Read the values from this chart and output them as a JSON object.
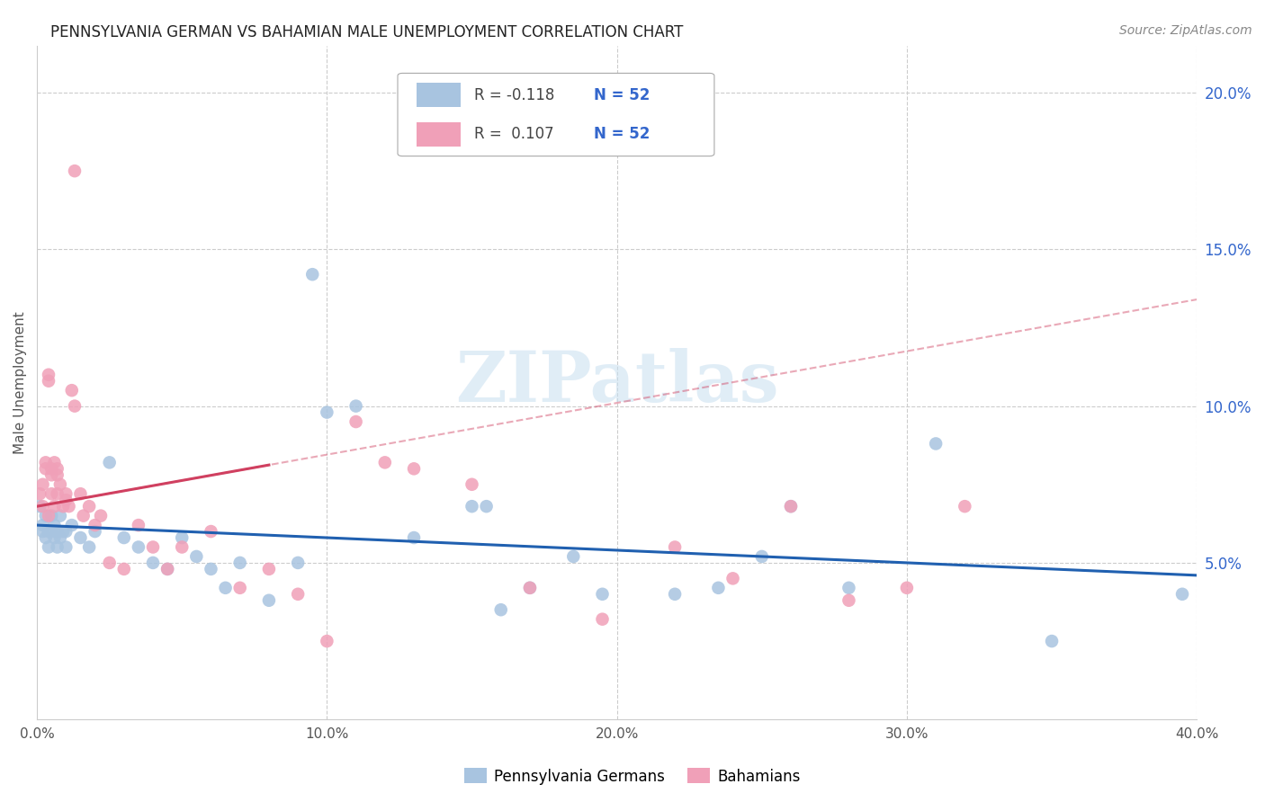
{
  "title": "PENNSYLVANIA GERMAN VS BAHAMIAN MALE UNEMPLOYMENT CORRELATION CHART",
  "source": "Source: ZipAtlas.com",
  "ylabel": "Male Unemployment",
  "watermark_text": "ZIPatlas",
  "pg_color": "#a8c4e0",
  "bah_color": "#f0a0b8",
  "pg_line_color": "#2060b0",
  "bah_line_color": "#d04060",
  "R_pg": -0.118,
  "N_pg": 52,
  "R_bah": 0.107,
  "N_bah": 52,
  "pg_points": [
    [
      0.001,
      0.068
    ],
    [
      0.002,
      0.062
    ],
    [
      0.002,
      0.06
    ],
    [
      0.003,
      0.058
    ],
    [
      0.003,
      0.065
    ],
    [
      0.004,
      0.06
    ],
    [
      0.004,
      0.055
    ],
    [
      0.005,
      0.06
    ],
    [
      0.005,
      0.065
    ],
    [
      0.006,
      0.058
    ],
    [
      0.006,
      0.062
    ],
    [
      0.007,
      0.055
    ],
    [
      0.007,
      0.06
    ],
    [
      0.008,
      0.058
    ],
    [
      0.008,
      0.065
    ],
    [
      0.009,
      0.06
    ],
    [
      0.01,
      0.055
    ],
    [
      0.01,
      0.06
    ],
    [
      0.012,
      0.062
    ],
    [
      0.015,
      0.058
    ],
    [
      0.018,
      0.055
    ],
    [
      0.02,
      0.06
    ],
    [
      0.025,
      0.082
    ],
    [
      0.03,
      0.058
    ],
    [
      0.035,
      0.055
    ],
    [
      0.04,
      0.05
    ],
    [
      0.045,
      0.048
    ],
    [
      0.05,
      0.058
    ],
    [
      0.055,
      0.052
    ],
    [
      0.06,
      0.048
    ],
    [
      0.065,
      0.042
    ],
    [
      0.07,
      0.05
    ],
    [
      0.08,
      0.038
    ],
    [
      0.09,
      0.05
    ],
    [
      0.095,
      0.142
    ],
    [
      0.1,
      0.098
    ],
    [
      0.11,
      0.1
    ],
    [
      0.13,
      0.058
    ],
    [
      0.15,
      0.068
    ],
    [
      0.155,
      0.068
    ],
    [
      0.16,
      0.035
    ],
    [
      0.17,
      0.042
    ],
    [
      0.185,
      0.052
    ],
    [
      0.195,
      0.04
    ],
    [
      0.22,
      0.04
    ],
    [
      0.235,
      0.042
    ],
    [
      0.25,
      0.052
    ],
    [
      0.26,
      0.068
    ],
    [
      0.28,
      0.042
    ],
    [
      0.31,
      0.088
    ],
    [
      0.35,
      0.025
    ],
    [
      0.395,
      0.04
    ]
  ],
  "bah_points": [
    [
      0.001,
      0.072
    ],
    [
      0.002,
      0.068
    ],
    [
      0.002,
      0.075
    ],
    [
      0.003,
      0.08
    ],
    [
      0.003,
      0.082
    ],
    [
      0.004,
      0.065
    ],
    [
      0.004,
      0.108
    ],
    [
      0.004,
      0.11
    ],
    [
      0.005,
      0.072
    ],
    [
      0.005,
      0.078
    ],
    [
      0.005,
      0.08
    ],
    [
      0.006,
      0.082
    ],
    [
      0.006,
      0.068
    ],
    [
      0.007,
      0.072
    ],
    [
      0.007,
      0.078
    ],
    [
      0.007,
      0.08
    ],
    [
      0.008,
      0.075
    ],
    [
      0.009,
      0.068
    ],
    [
      0.01,
      0.07
    ],
    [
      0.01,
      0.072
    ],
    [
      0.011,
      0.068
    ],
    [
      0.012,
      0.105
    ],
    [
      0.013,
      0.1
    ],
    [
      0.013,
      0.175
    ],
    [
      0.015,
      0.072
    ],
    [
      0.016,
      0.065
    ],
    [
      0.018,
      0.068
    ],
    [
      0.02,
      0.062
    ],
    [
      0.022,
      0.065
    ],
    [
      0.025,
      0.05
    ],
    [
      0.03,
      0.048
    ],
    [
      0.035,
      0.062
    ],
    [
      0.04,
      0.055
    ],
    [
      0.045,
      0.048
    ],
    [
      0.05,
      0.055
    ],
    [
      0.06,
      0.06
    ],
    [
      0.07,
      0.042
    ],
    [
      0.08,
      0.048
    ],
    [
      0.09,
      0.04
    ],
    [
      0.1,
      0.025
    ],
    [
      0.11,
      0.095
    ],
    [
      0.12,
      0.082
    ],
    [
      0.13,
      0.08
    ],
    [
      0.15,
      0.075
    ],
    [
      0.17,
      0.042
    ],
    [
      0.195,
      0.032
    ],
    [
      0.22,
      0.055
    ],
    [
      0.24,
      0.045
    ],
    [
      0.26,
      0.068
    ],
    [
      0.28,
      0.038
    ],
    [
      0.3,
      0.042
    ],
    [
      0.32,
      0.068
    ]
  ]
}
